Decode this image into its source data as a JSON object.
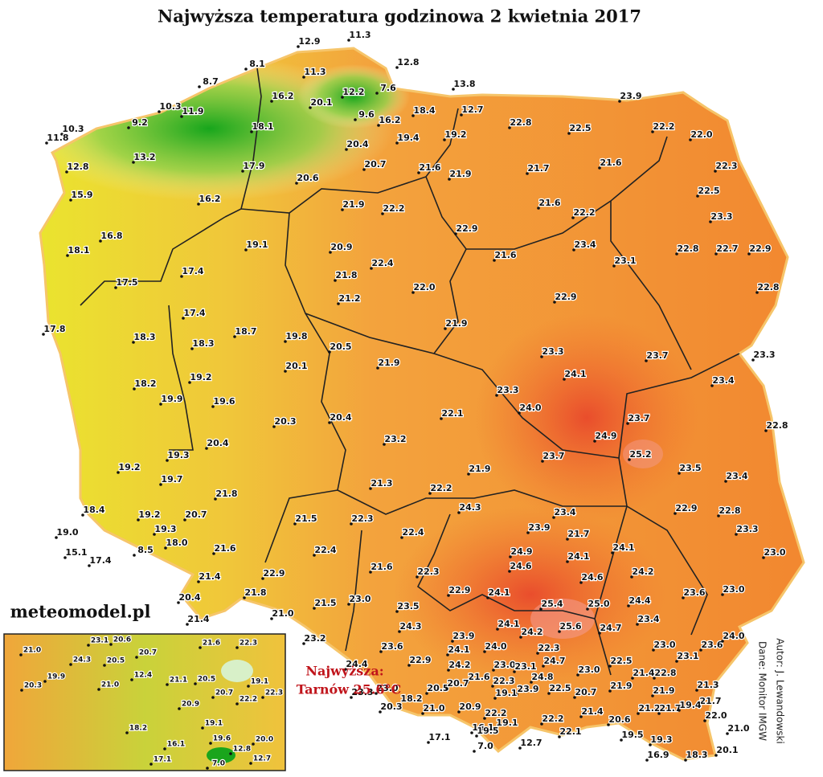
{
  "title": "Najwyższa temperatura godzinowa 2 kwietnia 2017",
  "site": "meteomodel.pl",
  "highlight": {
    "label": "Najwyższa:",
    "value": "Tarnów 25.6°C"
  },
  "author": "Autor: J. Lewandowski",
  "data_source": "Dane: Monitor IMGW",
  "stations": [
    "12.9",
    "11.3",
    "12.8",
    "8.1",
    "8.7",
    "11.3",
    "7.6",
    "13.8",
    "10.3",
    "16.2",
    "20.1",
    "12.2",
    "18.4",
    "12.7",
    "23.9",
    "9.2",
    "10.3",
    "11.9",
    "9.6",
    "16.2",
    "11.8",
    "18.1",
    "19.2",
    "22.8",
    "22.5",
    "22.2",
    "22.0",
    "19.4",
    "20.4",
    "13.2",
    "12.8",
    "17.9",
    "20.7",
    "21.6",
    "21.9",
    "21.7",
    "21.6",
    "22.3",
    "20.6",
    "15.9",
    "16.2",
    "21.9",
    "22.2",
    "21.6",
    "22.5",
    "22.2",
    "23.3",
    "16.8",
    "19.1",
    "22.9",
    "23.4",
    "20.9",
    "22.4",
    "21.6",
    "23.1",
    "22.8",
    "22.7",
    "22.9",
    "18.1",
    "17.4",
    "21.8",
    "22.0",
    "17.5",
    "22.8",
    "21.2",
    "22.9",
    "17.4",
    "17.8",
    "18.7",
    "19.8",
    "21.9",
    "18.3",
    "18.3",
    "20.5",
    "23.3",
    "23.7",
    "23.3",
    "20.1",
    "21.9",
    "24.1",
    "23.4",
    "19.2",
    "18.2",
    "23.3",
    "19.9",
    "19.6",
    "20.3",
    "20.4",
    "22.1",
    "24.0",
    "23.7",
    "22.8",
    "24.9",
    "23.2",
    "20.4",
    "25.2",
    "19.3",
    "23.7",
    "23.5",
    "19.2",
    "21.9",
    "23.4",
    "19.7",
    "21.3",
    "22.2",
    "21.8",
    "24.3",
    "23.4",
    "22.9",
    "22.8",
    "18.4",
    "19.2",
    "20.7",
    "21.5",
    "22.3",
    "23.9",
    "21.7",
    "23.3",
    "19.0",
    "19.3",
    "22.4",
    "15.1",
    "17.4",
    "8.5",
    "18.0",
    "24.9",
    "24.1",
    "24.1",
    "23.0",
    "21.6",
    "22.4",
    "24.6",
    "24.2",
    "21.6",
    "22.3",
    "24.6",
    "21.4",
    "22.9",
    "22.9",
    "24.1",
    "23.0",
    "23.6",
    "20.4",
    "21.8",
    "25.4",
    "25.0",
    "24.4",
    "21.5",
    "23.0",
    "23.5",
    "21.0",
    "23.4",
    "24.7",
    "25.6",
    "21.4",
    "24.3",
    "23.9",
    "24.1",
    "24.2",
    "23.2",
    "24.0",
    "23.6",
    "24.1",
    "22.3",
    "23.0",
    "23.6",
    "24.0",
    "24.4",
    "22.9",
    "23.0",
    "23.1",
    "24.7",
    "22.5",
    "21.4",
    "22.8",
    "23.1",
    "24.2",
    "23.0",
    "21.6",
    "22.3",
    "24.8",
    "23.0",
    "23.3",
    "20.5",
    "20.7",
    "23.9",
    "22.5",
    "21.9",
    "21.9",
    "21.3",
    "18.2",
    "19.1",
    "20.7",
    "21.7",
    "21.0",
    "20.3",
    "20.9",
    "21.4",
    "20.6",
    "21.2",
    "21.7",
    "19.4",
    "22.0",
    "22.2",
    "22.2",
    "19.1",
    "19.5",
    "19.3",
    "21.0",
    "17.1",
    "16.1",
    "19.5",
    "22.1",
    "12.7",
    "20.1",
    "16.9",
    "18.3",
    "7.0"
  ],
  "inset_stations": [
    "21.0",
    "23.1",
    "20.6",
    "22.3",
    "21.6",
    "24.3",
    "20.7",
    "20.5",
    "21.1",
    "19.9",
    "12.4",
    "20.5",
    "19.1",
    "21.0",
    "20.3",
    "20.7",
    "22.2",
    "22.3",
    "20.9",
    "19.1",
    "18.2",
    "19.6",
    "20.0",
    "16.1",
    "12.8",
    "12.7",
    "17.1",
    "7.0"
  ]
}
